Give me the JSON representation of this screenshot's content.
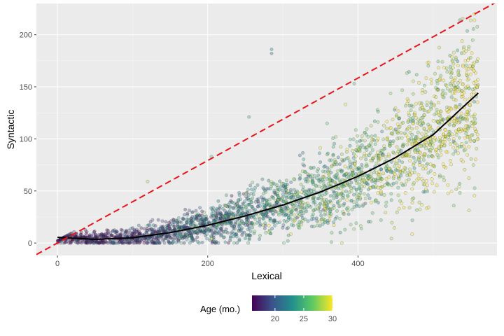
{
  "chart_data": {
    "type": "scatter",
    "title": "",
    "xlabel": "Lexical",
    "ylabel": "Syntactic",
    "xlim": [
      -28,
      585
    ],
    "ylim": [
      -12,
      230
    ],
    "x_ticks": [
      0,
      200,
      400
    ],
    "y_ticks": [
      0,
      50,
      100,
      150,
      200
    ],
    "grid": true,
    "background": "#ebebeb",
    "point_opacity": 0.35,
    "point_outline_color": "#333333",
    "reference_line": {
      "label": "",
      "slope": 0.396,
      "intercept": 0,
      "color": "#e8141b",
      "style": "dashed"
    },
    "fit_curve": {
      "color": "#000000",
      "x": [
        0,
        50,
        100,
        150,
        200,
        250,
        300,
        350,
        400,
        450,
        500,
        560
      ],
      "y": [
        5.5,
        3.5,
        5,
        10,
        17,
        26,
        36.5,
        49,
        64,
        82,
        104,
        144
      ]
    },
    "color_scale": {
      "title": "Age (mo.)",
      "ticks": [
        20,
        25,
        30
      ],
      "range": [
        16,
        30
      ],
      "colormap": [
        "#440154",
        "#3b528b",
        "#21908d",
        "#5dc963",
        "#fde725"
      ]
    },
    "legend_position": "bottom",
    "outliers": [
      {
        "x": 285,
        "y": 186,
        "age": 22
      },
      {
        "x": 285,
        "y": 182,
        "age": 21
      },
      {
        "x": 555,
        "y": 220,
        "age": 30
      },
      {
        "x": 395,
        "y": 153,
        "age": 26
      },
      {
        "x": 255,
        "y": 121,
        "age": 24
      },
      {
        "x": 120,
        "y": 59,
        "age": 28
      },
      {
        "x": 205,
        "y": 83,
        "age": 25
      }
    ],
    "point_cloud": {
      "n_points": 2800,
      "x_range": [
        0,
        560
      ],
      "y_trend": [
        [
          0,
          5.5
        ],
        [
          50,
          3.5
        ],
        [
          100,
          5
        ],
        [
          150,
          10
        ],
        [
          200,
          17
        ],
        [
          250,
          26
        ],
        [
          300,
          36.5
        ],
        [
          350,
          49
        ],
        [
          400,
          64
        ],
        [
          450,
          82
        ],
        [
          500,
          104
        ],
        [
          560,
          144
        ]
      ],
      "age_by_x": [
        [
          0,
          16
        ],
        [
          100,
          18
        ],
        [
          200,
          21
        ],
        [
          300,
          24
        ],
        [
          400,
          26.5
        ],
        [
          500,
          29
        ],
        [
          560,
          30
        ]
      ]
    }
  }
}
